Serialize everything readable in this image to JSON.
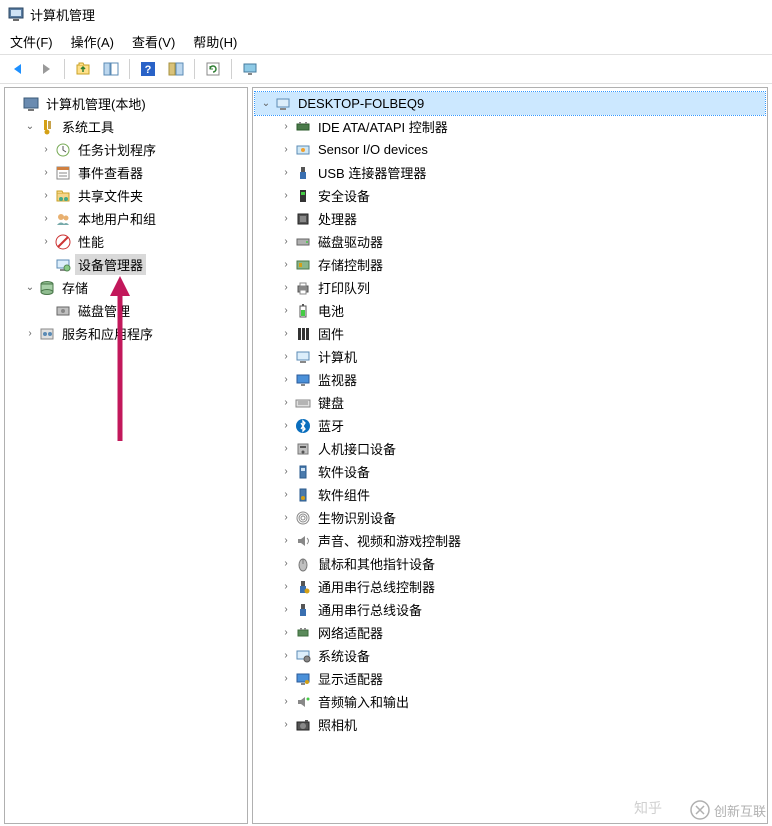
{
  "window": {
    "title": "计算机管理"
  },
  "menu": {
    "file": "文件(F)",
    "action": "操作(A)",
    "view": "查看(V)",
    "help": "帮助(H)"
  },
  "toolbar": {
    "back_color": "#1e90ff",
    "fwd_color": "#7a7a7a",
    "icons": [
      "back",
      "forward",
      "sep",
      "up",
      "show-hide",
      "sep",
      "help",
      "properties",
      "sep",
      "refresh",
      "sep",
      "monitor"
    ]
  },
  "left_tree": {
    "root": {
      "label": "计算机管理(本地)",
      "icon": "computer-mgmt"
    },
    "system_tools": {
      "label": "系统工具",
      "icon": "wrench"
    },
    "system_tools_children": [
      {
        "label": "任务计划程序",
        "icon": "clock",
        "caret": ">"
      },
      {
        "label": "事件查看器",
        "icon": "event",
        "caret": ">"
      },
      {
        "label": "共享文件夹",
        "icon": "shared-folder",
        "caret": ">"
      },
      {
        "label": "本地用户和组",
        "icon": "users",
        "caret": ">"
      },
      {
        "label": "性能",
        "icon": "perf",
        "caret": ">"
      },
      {
        "label": "设备管理器",
        "icon": "device-mgr",
        "caret": "",
        "selected": true
      }
    ],
    "storage": {
      "label": "存储",
      "icon": "storage"
    },
    "storage_children": [
      {
        "label": "磁盘管理",
        "icon": "disk-mgmt",
        "caret": ""
      }
    ],
    "services": {
      "label": "服务和应用程序",
      "icon": "services",
      "caret": ">"
    }
  },
  "right_tree": {
    "root": {
      "label": "DESKTOP-FOLBEQ9",
      "icon": "computer",
      "highlighted": true
    },
    "children": [
      {
        "label": "IDE ATA/ATAPI 控制器",
        "icon": "ide"
      },
      {
        "label": "Sensor I/O devices",
        "icon": "sensor"
      },
      {
        "label": "USB 连接器管理器",
        "icon": "usb"
      },
      {
        "label": "安全设备",
        "icon": "security"
      },
      {
        "label": "处理器",
        "icon": "cpu"
      },
      {
        "label": "磁盘驱动器",
        "icon": "disk"
      },
      {
        "label": "存储控制器",
        "icon": "storage-ctrl"
      },
      {
        "label": "打印队列",
        "icon": "printer"
      },
      {
        "label": "电池",
        "icon": "battery"
      },
      {
        "label": "固件",
        "icon": "firmware"
      },
      {
        "label": "计算机",
        "icon": "pc"
      },
      {
        "label": "监视器",
        "icon": "monitor"
      },
      {
        "label": "键盘",
        "icon": "keyboard"
      },
      {
        "label": "蓝牙",
        "icon": "bluetooth"
      },
      {
        "label": "人机接口设备",
        "icon": "hid"
      },
      {
        "label": "软件设备",
        "icon": "soft-dev"
      },
      {
        "label": "软件组件",
        "icon": "soft-comp"
      },
      {
        "label": "生物识别设备",
        "icon": "biometric"
      },
      {
        "label": "声音、视频和游戏控制器",
        "icon": "audio"
      },
      {
        "label": "鼠标和其他指针设备",
        "icon": "mouse"
      },
      {
        "label": "通用串行总线控制器",
        "icon": "usb-ctrl"
      },
      {
        "label": "通用串行总线设备",
        "icon": "usb-dev"
      },
      {
        "label": "网络适配器",
        "icon": "network"
      },
      {
        "label": "系统设备",
        "icon": "system"
      },
      {
        "label": "显示适配器",
        "icon": "display"
      },
      {
        "label": "音频输入和输出",
        "icon": "audio-io"
      },
      {
        "label": "照相机",
        "icon": "camera"
      }
    ]
  },
  "annotation": {
    "arrow_color": "#c2185b"
  },
  "watermark": {
    "zhihu": "知乎",
    "brand": "创新互联"
  },
  "colors": {
    "highlight_bg": "#cce8ff",
    "selected_bg": "#d9d9d9",
    "border": "#b0b0b0"
  }
}
